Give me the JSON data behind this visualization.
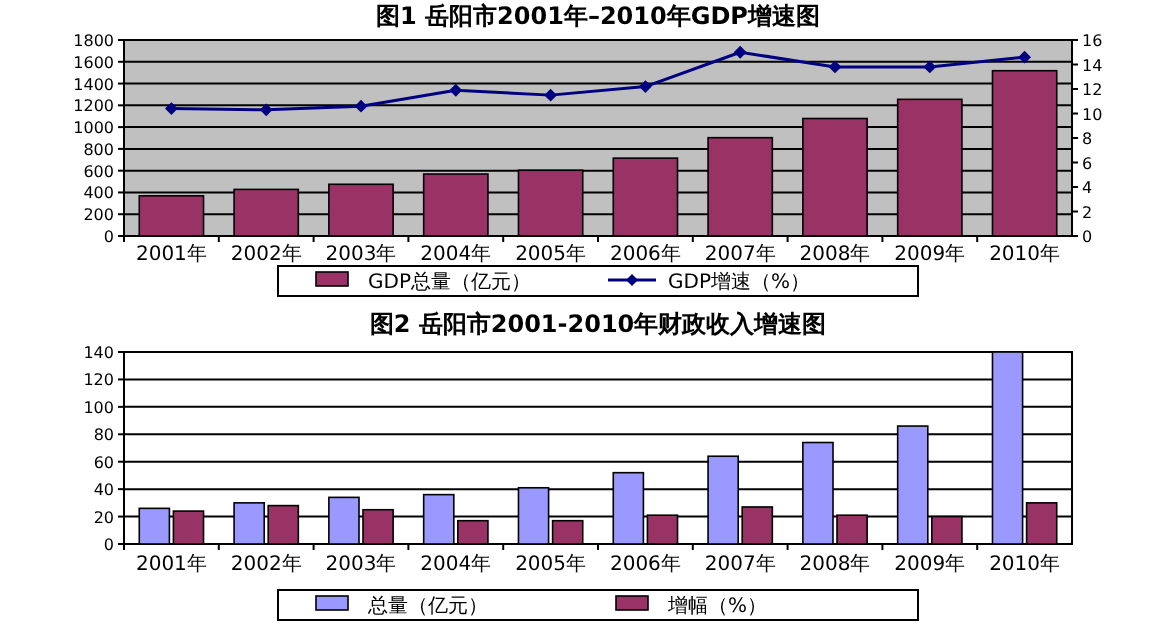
{
  "chart_data": [
    {
      "type": "bar",
      "title": "图1  岳阳市2001年–2010年GDP增速图",
      "categories": [
        "2001年",
        "2002年",
        "2003年",
        "2004年",
        "2005年",
        "2006年",
        "2007年",
        "2008年",
        "2009年",
        "2010年"
      ],
      "series": [
        {
          "name": "GDP总量（亿元）",
          "color": "#993366",
          "values": [
            369,
            428,
            475,
            569,
            604,
            715,
            903,
            1079,
            1255,
            1518
          ]
        },
        {
          "name": "GDP增速（%）",
          "type": "line",
          "axis": "y2",
          "marker": "diamond",
          "color": "#000080",
          "values": [
            10.4,
            10.3,
            10.6,
            11.9,
            11.5,
            12.2,
            15.0,
            13.8,
            13.8,
            14.6
          ]
        }
      ],
      "ylim": [
        0,
        1800
      ],
      "yticks": [
        0,
        200,
        400,
        600,
        800,
        1000,
        1200,
        1400,
        1600,
        1800
      ],
      "y2lim": [
        0,
        16
      ],
      "y2ticks": [
        0,
        2,
        4,
        6,
        8,
        10,
        12,
        14,
        16
      ],
      "grid": "y",
      "legend": "bottom"
    },
    {
      "type": "bar",
      "title": "图2  岳阳市2001-2010年财政收入增速图",
      "categories": [
        "2001年",
        "2002年",
        "2003年",
        "2004年",
        "2005年",
        "2006年",
        "2007年",
        "2008年",
        "2009年",
        "2010年"
      ],
      "series": [
        {
          "name": "总量（亿元）",
          "color": "#9999ff",
          "values": [
            26,
            30,
            34,
            36,
            41,
            52,
            64,
            74,
            86,
            140
          ]
        },
        {
          "name": "增幅（%）",
          "color": "#993366",
          "values": [
            24,
            28,
            25,
            17,
            17,
            21,
            27,
            21,
            20,
            30
          ]
        }
      ],
      "ylim": [
        0,
        140
      ],
      "yticks": [
        0,
        20,
        40,
        60,
        80,
        100,
        120,
        140
      ],
      "grid": "y",
      "legend": "bottom"
    }
  ]
}
